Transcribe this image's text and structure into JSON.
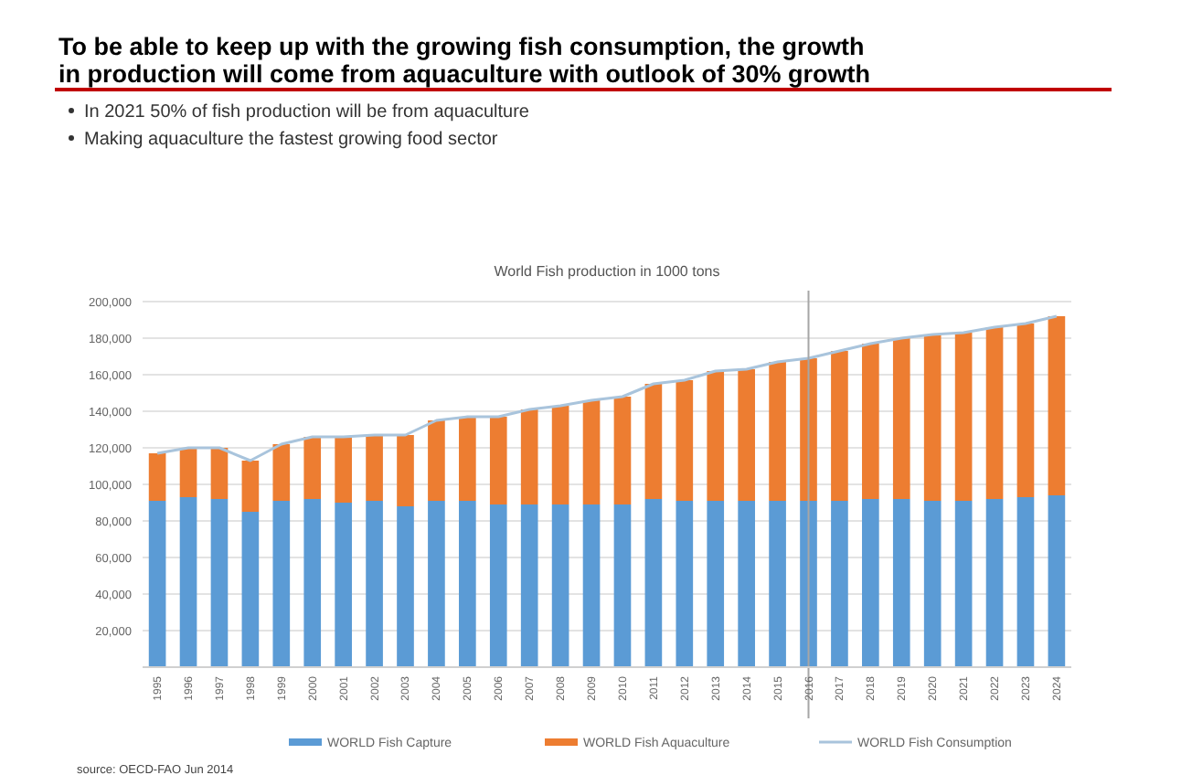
{
  "chart_data": {
    "type": "bar",
    "stacked": true,
    "title": "To be able to keep up with the growing fish consumption, the growth in production will come from aquaculture with outlook of 30% growth",
    "subtitle": "World Fish production in 1000 tons",
    "annotations": [
      "In 2021 50% of fish production will be from aquaculture",
      "Making aquaculture the fastest growing food sector",
      "source: OECD-FAO Jun 2014"
    ],
    "categories": [
      "1995",
      "1996",
      "1997",
      "1998",
      "1999",
      "2000",
      "2001",
      "2002",
      "2003",
      "2004",
      "2005",
      "2006",
      "2007",
      "2008",
      "2009",
      "2010",
      "2011",
      "2012",
      "2013",
      "2014",
      "2015",
      "2016",
      "2017",
      "2018",
      "2019",
      "2020",
      "2021",
      "2022",
      "2023",
      "2024"
    ],
    "series": [
      {
        "name": "WORLD Fish Capture",
        "color": "#5b9bd5",
        "values": [
          91000,
          93000,
          92000,
          85000,
          91000,
          92000,
          90000,
          91000,
          88000,
          91000,
          91000,
          89000,
          89000,
          89000,
          89000,
          89000,
          92000,
          91000,
          91000,
          91000,
          91000,
          91000,
          91000,
          92000,
          92000,
          91000,
          91000,
          92000,
          93000,
          94000
        ]
      },
      {
        "name": "WORLD Fish Aquaculture",
        "color": "#ed7d31",
        "values": [
          26000,
          27000,
          28000,
          28000,
          31000,
          34000,
          36000,
          36000,
          39000,
          44000,
          46000,
          48000,
          52000,
          54000,
          57000,
          59000,
          63000,
          66000,
          71000,
          72000,
          76000,
          78000,
          82000,
          85000,
          88000,
          91000,
          92000,
          94000,
          95000,
          98000
        ]
      },
      {
        "name": "WORLD Fish Consumption",
        "type": "line",
        "color": "#a9c4dc",
        "values": [
          117000,
          120000,
          120000,
          113000,
          122000,
          126000,
          126000,
          127000,
          127000,
          135000,
          137000,
          137000,
          141000,
          143000,
          146000,
          148000,
          155000,
          157000,
          162000,
          163000,
          167000,
          169000,
          173000,
          177000,
          180000,
          182000,
          183000,
          186000,
          188000,
          192000
        ]
      }
    ],
    "ylim": [
      0,
      200000
    ],
    "yticks": [
      {
        "value": 0,
        "label": null
      },
      {
        "value": 20000,
        "label": "20,000"
      },
      {
        "value": 40000,
        "label": "40,000"
      },
      {
        "value": 60000,
        "label": "60,000"
      },
      {
        "value": 80000,
        "label": "80,000"
      },
      {
        "value": 100000,
        "label": "100,000"
      },
      {
        "value": 120000,
        "label": "120,000"
      },
      {
        "value": 140000,
        "label": "140,000"
      },
      {
        "value": 160000,
        "label": "160,000"
      },
      {
        "value": 180000,
        "label": "180,000"
      },
      {
        "value": 200000,
        "label": "200,000"
      }
    ],
    "ref_lines": [
      {
        "axis": "x",
        "value": "2016",
        "color": "#a6a6a6"
      }
    ],
    "grid": "y",
    "legend": "bottom"
  }
}
